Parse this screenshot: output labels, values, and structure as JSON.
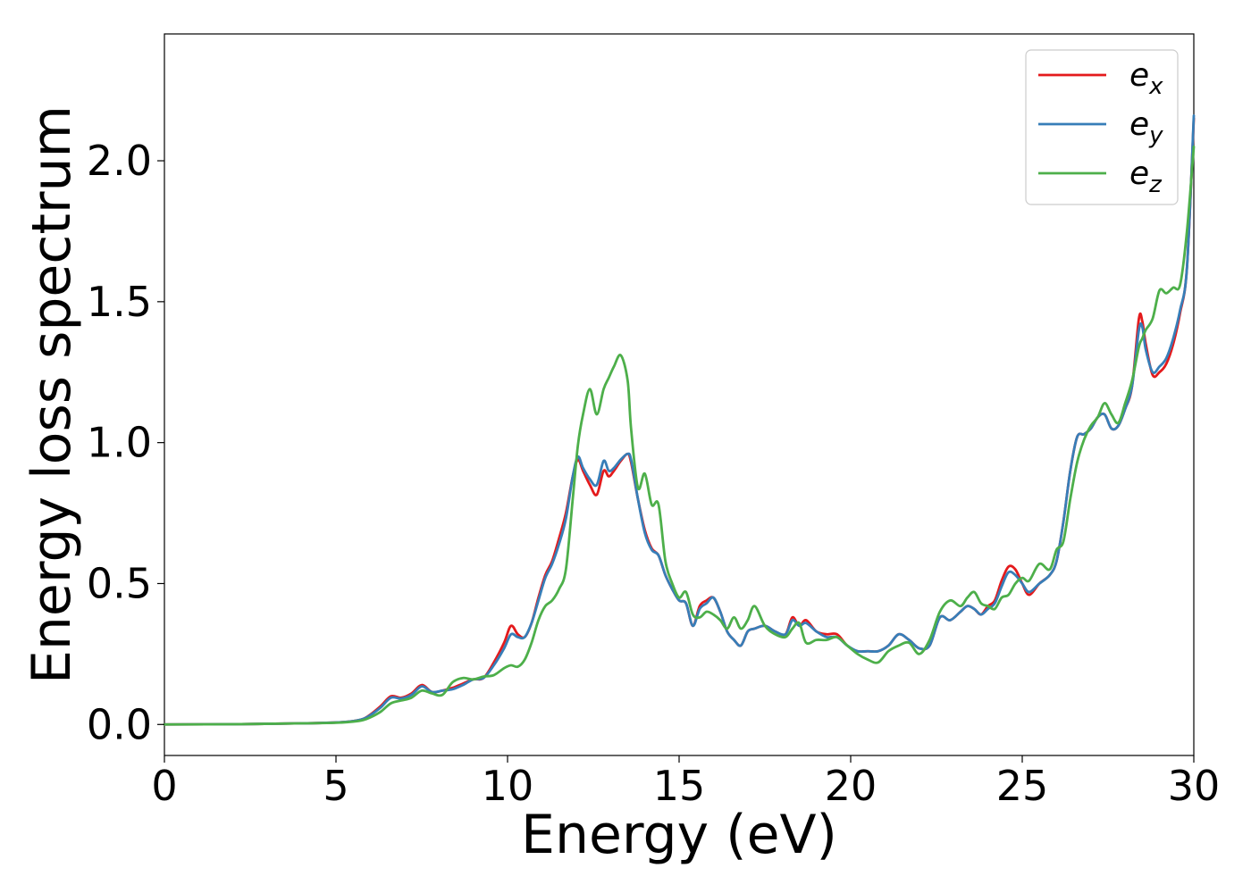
{
  "chart_data": {
    "type": "line",
    "title": "",
    "xlabel": "Energy (eV)",
    "ylabel": "Energy loss spectrum",
    "xlim": [
      0,
      30
    ],
    "ylim": [
      -0.11,
      2.45
    ],
    "xticks": [
      0,
      5,
      10,
      15,
      20,
      25,
      30
    ],
    "xtick_labels": [
      "0",
      "5",
      "10",
      "15",
      "20",
      "25",
      "30"
    ],
    "yticks": [
      0.0,
      0.5,
      1.0,
      1.5,
      2.0
    ],
    "ytick_labels": [
      "0.0",
      "0.5",
      "1.0",
      "1.5",
      "2.0"
    ],
    "grid": false,
    "legend_position": "top-right",
    "series": [
      {
        "name": "e_x",
        "legend_base": "e",
        "legend_sub": "x",
        "color": "#e41a1c",
        "x": [
          0,
          2,
          4,
          5,
          5.5,
          5.8,
          6.0,
          6.3,
          6.6,
          6.9,
          7.2,
          7.5,
          7.8,
          8.1,
          8.4,
          8.7,
          9.0,
          9.3,
          9.6,
          9.9,
          10.1,
          10.3,
          10.5,
          10.7,
          10.9,
          11.1,
          11.3,
          11.5,
          11.7,
          11.9,
          12.05,
          12.2,
          12.4,
          12.6,
          12.8,
          12.95,
          13.1,
          13.3,
          13.5,
          13.6,
          13.8,
          14.0,
          14.2,
          14.4,
          14.6,
          14.8,
          15.0,
          15.2,
          15.4,
          15.6,
          15.8,
          16.0,
          16.2,
          16.4,
          16.6,
          16.8,
          17.0,
          17.2,
          17.5,
          17.8,
          18.1,
          18.3,
          18.5,
          18.7,
          19.0,
          19.3,
          19.6,
          19.9,
          20.2,
          20.5,
          20.8,
          21.1,
          21.4,
          21.7,
          22.0,
          22.3,
          22.6,
          22.9,
          23.2,
          23.4,
          23.6,
          23.8,
          24.0,
          24.2,
          24.4,
          24.6,
          24.8,
          25.0,
          25.2,
          25.5,
          25.8,
          26.0,
          26.2,
          26.4,
          26.6,
          26.8,
          27.0,
          27.2,
          27.4,
          27.6,
          27.8,
          28.0,
          28.2,
          28.4,
          28.5,
          28.6,
          28.8,
          29.0,
          29.2,
          29.4,
          29.6,
          29.8,
          30.0
        ],
        "y": [
          0.0,
          0.001,
          0.004,
          0.007,
          0.012,
          0.02,
          0.035,
          0.065,
          0.1,
          0.095,
          0.11,
          0.14,
          0.115,
          0.12,
          0.13,
          0.145,
          0.16,
          0.165,
          0.22,
          0.29,
          0.35,
          0.32,
          0.31,
          0.36,
          0.45,
          0.53,
          0.58,
          0.66,
          0.75,
          0.88,
          0.94,
          0.9,
          0.85,
          0.815,
          0.9,
          0.88,
          0.9,
          0.935,
          0.96,
          0.93,
          0.8,
          0.69,
          0.625,
          0.6,
          0.53,
          0.48,
          0.44,
          0.43,
          0.35,
          0.42,
          0.44,
          0.45,
          0.4,
          0.33,
          0.3,
          0.28,
          0.33,
          0.34,
          0.35,
          0.33,
          0.32,
          0.38,
          0.35,
          0.37,
          0.33,
          0.32,
          0.32,
          0.28,
          0.26,
          0.26,
          0.26,
          0.28,
          0.32,
          0.3,
          0.27,
          0.28,
          0.38,
          0.37,
          0.4,
          0.42,
          0.41,
          0.39,
          0.42,
          0.44,
          0.51,
          0.56,
          0.55,
          0.5,
          0.46,
          0.5,
          0.53,
          0.58,
          0.72,
          0.9,
          1.02,
          1.03,
          1.05,
          1.09,
          1.1,
          1.05,
          1.06,
          1.12,
          1.2,
          1.44,
          1.43,
          1.35,
          1.24,
          1.25,
          1.28,
          1.35,
          1.46,
          1.62,
          2.15
        ]
      },
      {
        "name": "e_y",
        "legend_base": "e",
        "legend_sub": "y",
        "color": "#377eb8",
        "x": [
          0,
          2,
          4,
          5,
          5.5,
          5.8,
          6.0,
          6.3,
          6.6,
          6.9,
          7.2,
          7.5,
          7.8,
          8.1,
          8.4,
          8.7,
          9.0,
          9.3,
          9.6,
          9.9,
          10.1,
          10.3,
          10.5,
          10.7,
          10.9,
          11.1,
          11.3,
          11.5,
          11.7,
          11.9,
          12.05,
          12.2,
          12.4,
          12.6,
          12.8,
          12.95,
          13.1,
          13.3,
          13.5,
          13.6,
          13.8,
          14.0,
          14.2,
          14.4,
          14.6,
          14.8,
          15.0,
          15.2,
          15.4,
          15.6,
          15.8,
          16.0,
          16.2,
          16.4,
          16.6,
          16.8,
          17.0,
          17.2,
          17.5,
          17.8,
          18.1,
          18.3,
          18.5,
          18.7,
          19.0,
          19.3,
          19.6,
          19.9,
          20.2,
          20.5,
          20.8,
          21.1,
          21.4,
          21.7,
          22.0,
          22.3,
          22.6,
          22.9,
          23.2,
          23.4,
          23.6,
          23.8,
          24.0,
          24.2,
          24.4,
          24.6,
          24.8,
          25.0,
          25.2,
          25.5,
          25.8,
          26.0,
          26.2,
          26.4,
          26.6,
          26.8,
          27.0,
          27.2,
          27.4,
          27.6,
          27.8,
          28.0,
          28.2,
          28.4,
          28.5,
          28.6,
          28.8,
          29.0,
          29.2,
          29.4,
          29.6,
          29.8,
          30.0
        ],
        "y": [
          0.0,
          0.001,
          0.004,
          0.007,
          0.012,
          0.02,
          0.033,
          0.06,
          0.095,
          0.092,
          0.105,
          0.135,
          0.115,
          0.12,
          0.125,
          0.14,
          0.16,
          0.165,
          0.21,
          0.27,
          0.32,
          0.31,
          0.31,
          0.36,
          0.44,
          0.52,
          0.57,
          0.64,
          0.73,
          0.88,
          0.95,
          0.91,
          0.87,
          0.85,
          0.935,
          0.9,
          0.91,
          0.94,
          0.96,
          0.94,
          0.8,
          0.68,
          0.62,
          0.6,
          0.53,
          0.48,
          0.44,
          0.43,
          0.35,
          0.41,
          0.43,
          0.45,
          0.4,
          0.33,
          0.3,
          0.28,
          0.33,
          0.34,
          0.35,
          0.33,
          0.32,
          0.37,
          0.35,
          0.36,
          0.33,
          0.31,
          0.31,
          0.28,
          0.26,
          0.26,
          0.26,
          0.28,
          0.32,
          0.3,
          0.27,
          0.28,
          0.38,
          0.37,
          0.4,
          0.42,
          0.41,
          0.39,
          0.41,
          0.43,
          0.49,
          0.54,
          0.53,
          0.5,
          0.47,
          0.5,
          0.53,
          0.58,
          0.72,
          0.9,
          1.02,
          1.03,
          1.05,
          1.09,
          1.1,
          1.05,
          1.06,
          1.12,
          1.2,
          1.4,
          1.41,
          1.33,
          1.25,
          1.27,
          1.3,
          1.37,
          1.47,
          1.62,
          2.16
        ]
      },
      {
        "name": "e_z",
        "legend_base": "e",
        "legend_sub": "z",
        "color": "#4daf4a",
        "x": [
          0,
          2,
          4,
          5,
          5.5,
          5.8,
          6.0,
          6.3,
          6.6,
          6.9,
          7.2,
          7.5,
          7.8,
          8.1,
          8.4,
          8.7,
          9.0,
          9.3,
          9.6,
          9.9,
          10.1,
          10.3,
          10.5,
          10.7,
          10.9,
          11.1,
          11.3,
          11.5,
          11.7,
          11.9,
          12.05,
          12.2,
          12.4,
          12.6,
          12.8,
          12.95,
          13.1,
          13.3,
          13.5,
          13.6,
          13.8,
          14.0,
          14.2,
          14.4,
          14.6,
          14.8,
          15.0,
          15.2,
          15.4,
          15.6,
          15.8,
          16.0,
          16.2,
          16.4,
          16.6,
          16.8,
          17.0,
          17.2,
          17.5,
          17.8,
          18.1,
          18.3,
          18.5,
          18.7,
          19.0,
          19.3,
          19.6,
          19.9,
          20.2,
          20.5,
          20.8,
          21.1,
          21.4,
          21.7,
          22.0,
          22.3,
          22.6,
          22.9,
          23.2,
          23.4,
          23.6,
          23.8,
          24.0,
          24.2,
          24.4,
          24.6,
          24.8,
          25.0,
          25.2,
          25.5,
          25.8,
          26.0,
          26.2,
          26.4,
          26.6,
          26.8,
          27.0,
          27.2,
          27.4,
          27.6,
          27.8,
          28.0,
          28.2,
          28.4,
          28.5,
          28.6,
          28.8,
          29.0,
          29.2,
          29.4,
          29.6,
          29.8,
          30.0
        ],
        "y": [
          0.0,
          0.001,
          0.004,
          0.006,
          0.01,
          0.016,
          0.025,
          0.045,
          0.075,
          0.085,
          0.095,
          0.12,
          0.11,
          0.105,
          0.15,
          0.165,
          0.16,
          0.17,
          0.175,
          0.2,
          0.21,
          0.205,
          0.23,
          0.29,
          0.37,
          0.42,
          0.44,
          0.48,
          0.55,
          0.8,
          0.99,
          1.1,
          1.19,
          1.1,
          1.19,
          1.23,
          1.27,
          1.31,
          1.22,
          1.05,
          0.84,
          0.89,
          0.78,
          0.78,
          0.58,
          0.5,
          0.45,
          0.47,
          0.39,
          0.38,
          0.4,
          0.39,
          0.37,
          0.34,
          0.38,
          0.34,
          0.37,
          0.42,
          0.35,
          0.32,
          0.31,
          0.34,
          0.36,
          0.29,
          0.3,
          0.3,
          0.31,
          0.28,
          0.25,
          0.23,
          0.22,
          0.26,
          0.28,
          0.29,
          0.25,
          0.3,
          0.4,
          0.44,
          0.42,
          0.45,
          0.47,
          0.43,
          0.42,
          0.41,
          0.45,
          0.46,
          0.5,
          0.52,
          0.51,
          0.57,
          0.55,
          0.62,
          0.65,
          0.8,
          0.93,
          1.01,
          1.06,
          1.09,
          1.14,
          1.1,
          1.07,
          1.14,
          1.22,
          1.34,
          1.37,
          1.4,
          1.44,
          1.54,
          1.53,
          1.55,
          1.56,
          1.75,
          2.05
        ]
      }
    ]
  }
}
